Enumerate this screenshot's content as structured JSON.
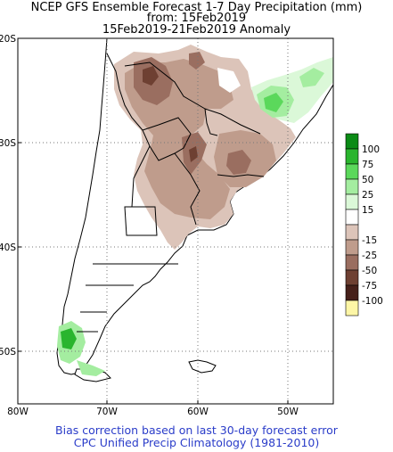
{
  "header": {
    "line1": "NCEP GFS Ensemble Forecast 1-7 Day Precipitation (mm)",
    "line2": "from: 15Feb2019",
    "line3": "15Feb2019-21Feb2019 Anomaly"
  },
  "axes": {
    "lat_labels": [
      "20S",
      "30S",
      "40S",
      "50S"
    ],
    "lon_labels": [
      "80W",
      "70W",
      "60W",
      "50W"
    ]
  },
  "legend": {
    "items": [
      {
        "label": "100",
        "color": "#0b8b16"
      },
      {
        "label": "75",
        "color": "#2ab52e"
      },
      {
        "label": "50",
        "color": "#5bd85b"
      },
      {
        "label": "25",
        "color": "#a4eda0"
      },
      {
        "label": "15",
        "color": "#dbf8d8"
      },
      {
        "label": "",
        "color": "#ffffff"
      },
      {
        "label": "-15",
        "color": "#dcc4b9"
      },
      {
        "label": "-25",
        "color": "#bf9c8c"
      },
      {
        "label": "-50",
        "color": "#9a6e60"
      },
      {
        "label": "-75",
        "color": "#6e4032"
      },
      {
        "label": "-100",
        "color": "#46201a"
      },
      {
        "label": "",
        "color": "#fdf6a6"
      }
    ]
  },
  "footer": {
    "line1": "Bias correction based on last 30-day forecast error",
    "line2": "CPC Unified Precip Climatology (1981-2010)"
  }
}
